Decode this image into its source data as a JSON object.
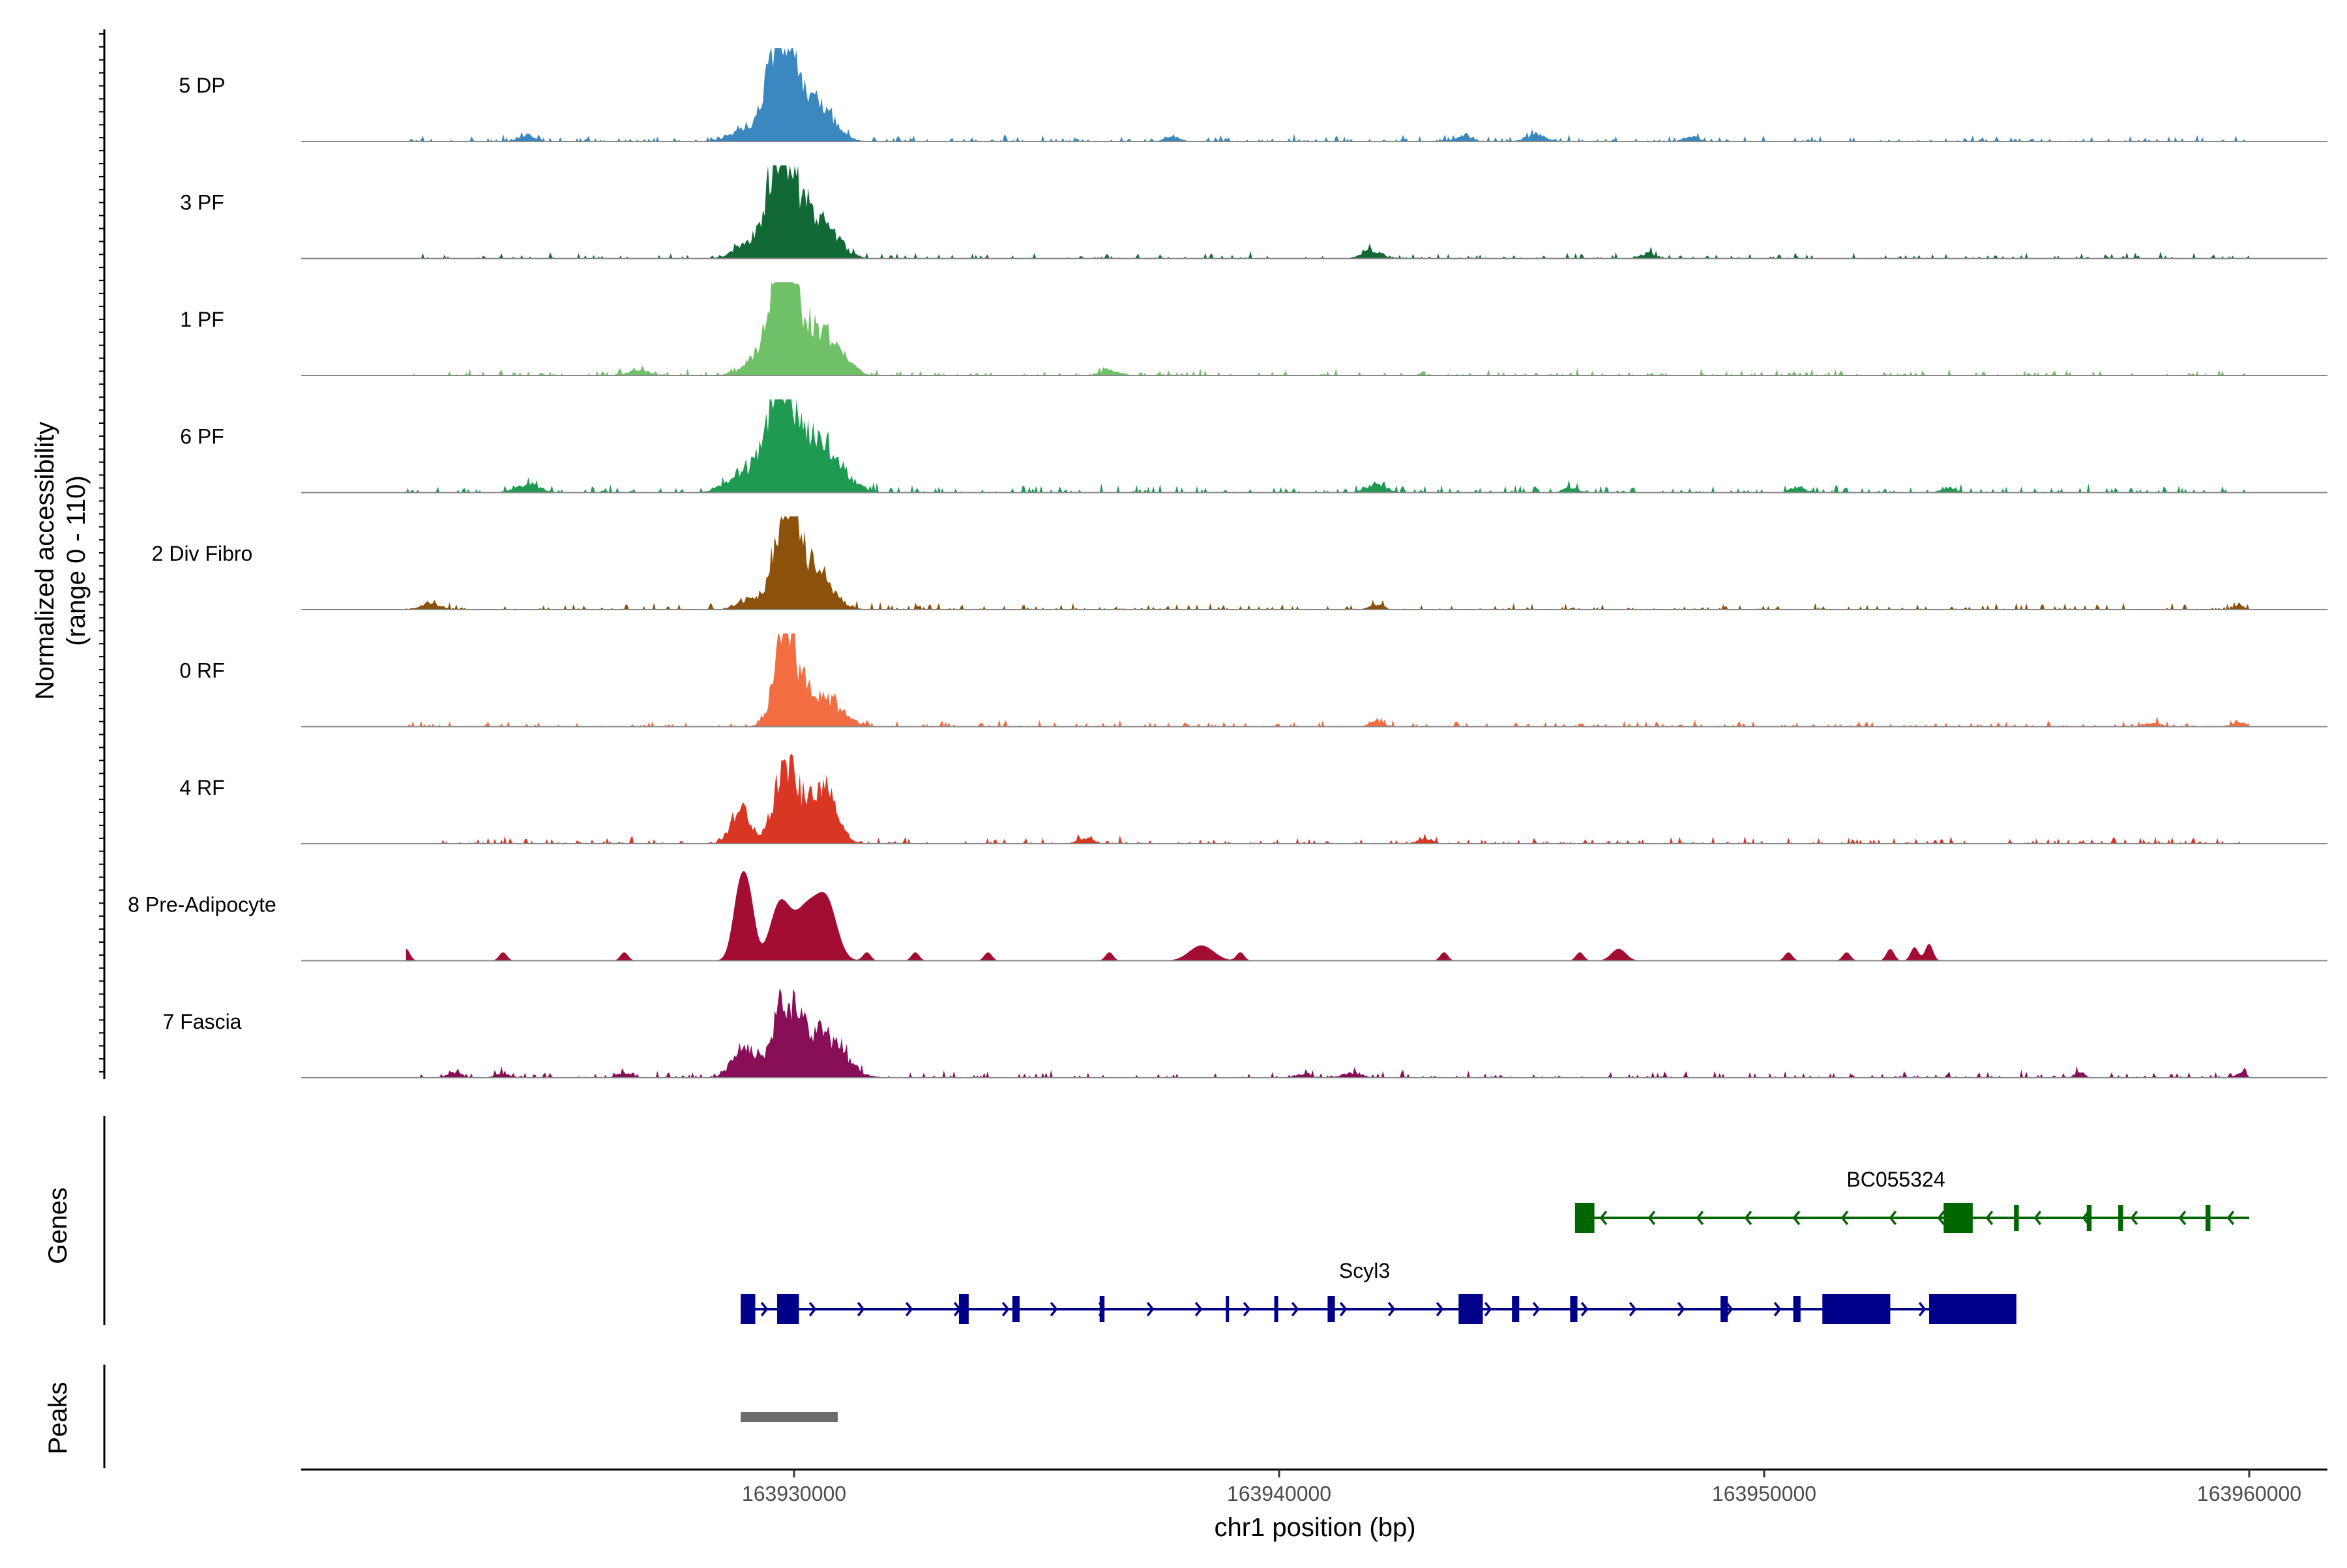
{
  "chart_data": {
    "type": "area",
    "title": "",
    "xlabel": "chr1 position (bp)",
    "ylabel_line1": "Normalized accessibility",
    "ylabel_line2": "(range 0 - 110)",
    "ylim": [
      0,
      110
    ],
    "xlim": [
      163920000,
      163962000
    ],
    "x_ticks": [
      {
        "value": 163930000,
        "label": "163930000"
      },
      {
        "value": 163940000,
        "label": "163940000"
      },
      {
        "value": 163950000,
        "label": "163950000"
      },
      {
        "value": 163960000,
        "label": "163960000"
      }
    ],
    "tracks_label_genes": "Genes",
    "tracks_label_peaks": "Peaks",
    "series": [
      {
        "name": "5 DP",
        "color": "#3a88bf",
        "noise": 7,
        "peaks": [
          [
            163929700,
            100,
            250
          ],
          [
            163930000,
            55,
            350
          ],
          [
            163930600,
            28,
            300
          ],
          [
            163929000,
            14,
            300
          ],
          [
            163924500,
            8,
            150
          ],
          [
            163937800,
            6,
            150
          ],
          [
            163943800,
            8,
            150
          ],
          [
            163945300,
            8,
            200
          ],
          [
            163948500,
            6,
            150
          ]
        ]
      },
      {
        "name": "3 PF",
        "color": "#116a35",
        "noise": 7,
        "peaks": [
          [
            163929700,
            100,
            250
          ],
          [
            163930100,
            55,
            380
          ],
          [
            163930700,
            25,
            300
          ],
          [
            163929100,
            18,
            300
          ],
          [
            163941900,
            10,
            200
          ],
          [
            163947600,
            6,
            150
          ]
        ]
      },
      {
        "name": "1 PF",
        "color": "#70c067",
        "noise": 7,
        "peaks": [
          [
            163929700,
            100,
            220
          ],
          [
            163930000,
            65,
            300
          ],
          [
            163930600,
            45,
            300
          ],
          [
            163929200,
            15,
            300
          ],
          [
            163926800,
            7,
            200
          ],
          [
            163931100,
            10,
            200
          ],
          [
            163936500,
            6,
            200
          ]
        ]
      },
      {
        "name": "6 PF",
        "color": "#1e9a51",
        "noise": 9,
        "peaks": [
          [
            163929700,
            95,
            250
          ],
          [
            163930100,
            60,
            400
          ],
          [
            163930800,
            30,
            350
          ],
          [
            163929000,
            25,
            350
          ],
          [
            163924500,
            10,
            250
          ],
          [
            163942000,
            10,
            200
          ],
          [
            163946000,
            6,
            150
          ],
          [
            163950700,
            7,
            150
          ],
          [
            163953800,
            6,
            150
          ]
        ]
      },
      {
        "name": "2 Div Fibro",
        "color": "#8c510a",
        "noise": 8,
        "peaks": [
          [
            163929800,
            100,
            220
          ],
          [
            163930100,
            50,
            300
          ],
          [
            163930600,
            25,
            300
          ],
          [
            163929100,
            13,
            250
          ],
          [
            163922500,
            8,
            200
          ],
          [
            163942000,
            6,
            150
          ],
          [
            163959800,
            5,
            100
          ]
        ]
      },
      {
        "name": "0 RF",
        "color": "#f26d41",
        "noise": 7,
        "peaks": [
          [
            163929800,
            100,
            200
          ],
          [
            163930200,
            40,
            350
          ],
          [
            163930800,
            20,
            300
          ],
          [
            163942000,
            6,
            150
          ],
          [
            163958000,
            5,
            150
          ],
          [
            163959800,
            5,
            150
          ]
        ]
      },
      {
        "name": "4 RF",
        "color": "#d93623",
        "noise": 8,
        "peaks": [
          [
            163929800,
            75,
            220
          ],
          [
            163930200,
            40,
            350
          ],
          [
            163930700,
            55,
            220
          ],
          [
            163928900,
            40,
            200
          ],
          [
            163936000,
            7,
            150
          ],
          [
            163943000,
            6,
            150
          ]
        ]
      },
      {
        "name": "8 Pre-Adipocyte",
        "color": "#a30c33",
        "noise": 0,
        "peaks": [
          [
            163928900,
            90,
            150
          ],
          [
            163929700,
            60,
            200
          ],
          [
            163930300,
            40,
            250
          ],
          [
            163930700,
            55,
            200
          ],
          [
            163930200,
            25,
            350
          ],
          [
            163929100,
            45,
            120
          ],
          [
            163922000,
            14,
            80
          ],
          [
            163924000,
            10,
            80
          ],
          [
            163926500,
            10,
            80
          ],
          [
            163931500,
            10,
            80
          ],
          [
            163932500,
            10,
            80
          ],
          [
            163934000,
            10,
            80
          ],
          [
            163936500,
            10,
            80
          ],
          [
            163938400,
            18,
            250
          ],
          [
            163939200,
            10,
            80
          ],
          [
            163943400,
            10,
            80
          ],
          [
            163946200,
            10,
            80
          ],
          [
            163947000,
            14,
            150
          ],
          [
            163950500,
            10,
            80
          ],
          [
            163951700,
            10,
            80
          ],
          [
            163952600,
            14,
            80
          ],
          [
            163953100,
            16,
            80
          ],
          [
            163953400,
            20,
            80
          ]
        ]
      },
      {
        "name": "7 Fascia",
        "color": "#880e58",
        "noise": 8,
        "peaks": [
          [
            163929800,
            70,
            200
          ],
          [
            163929000,
            38,
            250
          ],
          [
            163930200,
            45,
            400
          ],
          [
            163930800,
            30,
            350
          ],
          [
            163923000,
            6,
            150
          ],
          [
            163924000,
            5,
            150
          ],
          [
            163926500,
            6,
            150
          ],
          [
            163940500,
            5,
            150
          ],
          [
            163941500,
            6,
            200
          ],
          [
            163956500,
            7,
            100
          ],
          [
            163959800,
            5,
            100
          ]
        ]
      }
    ],
    "genes": [
      {
        "name": "BC055324",
        "color": "#006600",
        "strand": "-",
        "start": 163946100,
        "end": 163960000,
        "exons": [
          [
            163946100,
            163946500
          ],
          [
            163953700,
            163954300
          ],
          [
            163955150,
            163955250
          ],
          [
            163956650,
            163956750
          ],
          [
            163957300,
            163957400
          ],
          [
            163959100,
            163959200
          ]
        ]
      },
      {
        "name": "Scyl3",
        "color": "#00008b",
        "strand": "+",
        "start": 163928900,
        "end": 163955200,
        "exons": [
          [
            163928900,
            163929200
          ],
          [
            163929650,
            163930100
          ],
          [
            163933400,
            163933600
          ],
          [
            163934500,
            163934650
          ],
          [
            163936300,
            163936400
          ],
          [
            163938900,
            163938950
          ],
          [
            163939900,
            163939980
          ],
          [
            163941000,
            163941150
          ],
          [
            163943700,
            163944200
          ],
          [
            163944800,
            163944950
          ],
          [
            163946000,
            163946150
          ],
          [
            163949100,
            163949250
          ],
          [
            163950600,
            163950750
          ],
          [
            163951200,
            163952600
          ],
          [
            163953400,
            163955200
          ]
        ]
      }
    ],
    "peaks_track": [
      {
        "start": 163928900,
        "end": 163930900
      }
    ]
  }
}
